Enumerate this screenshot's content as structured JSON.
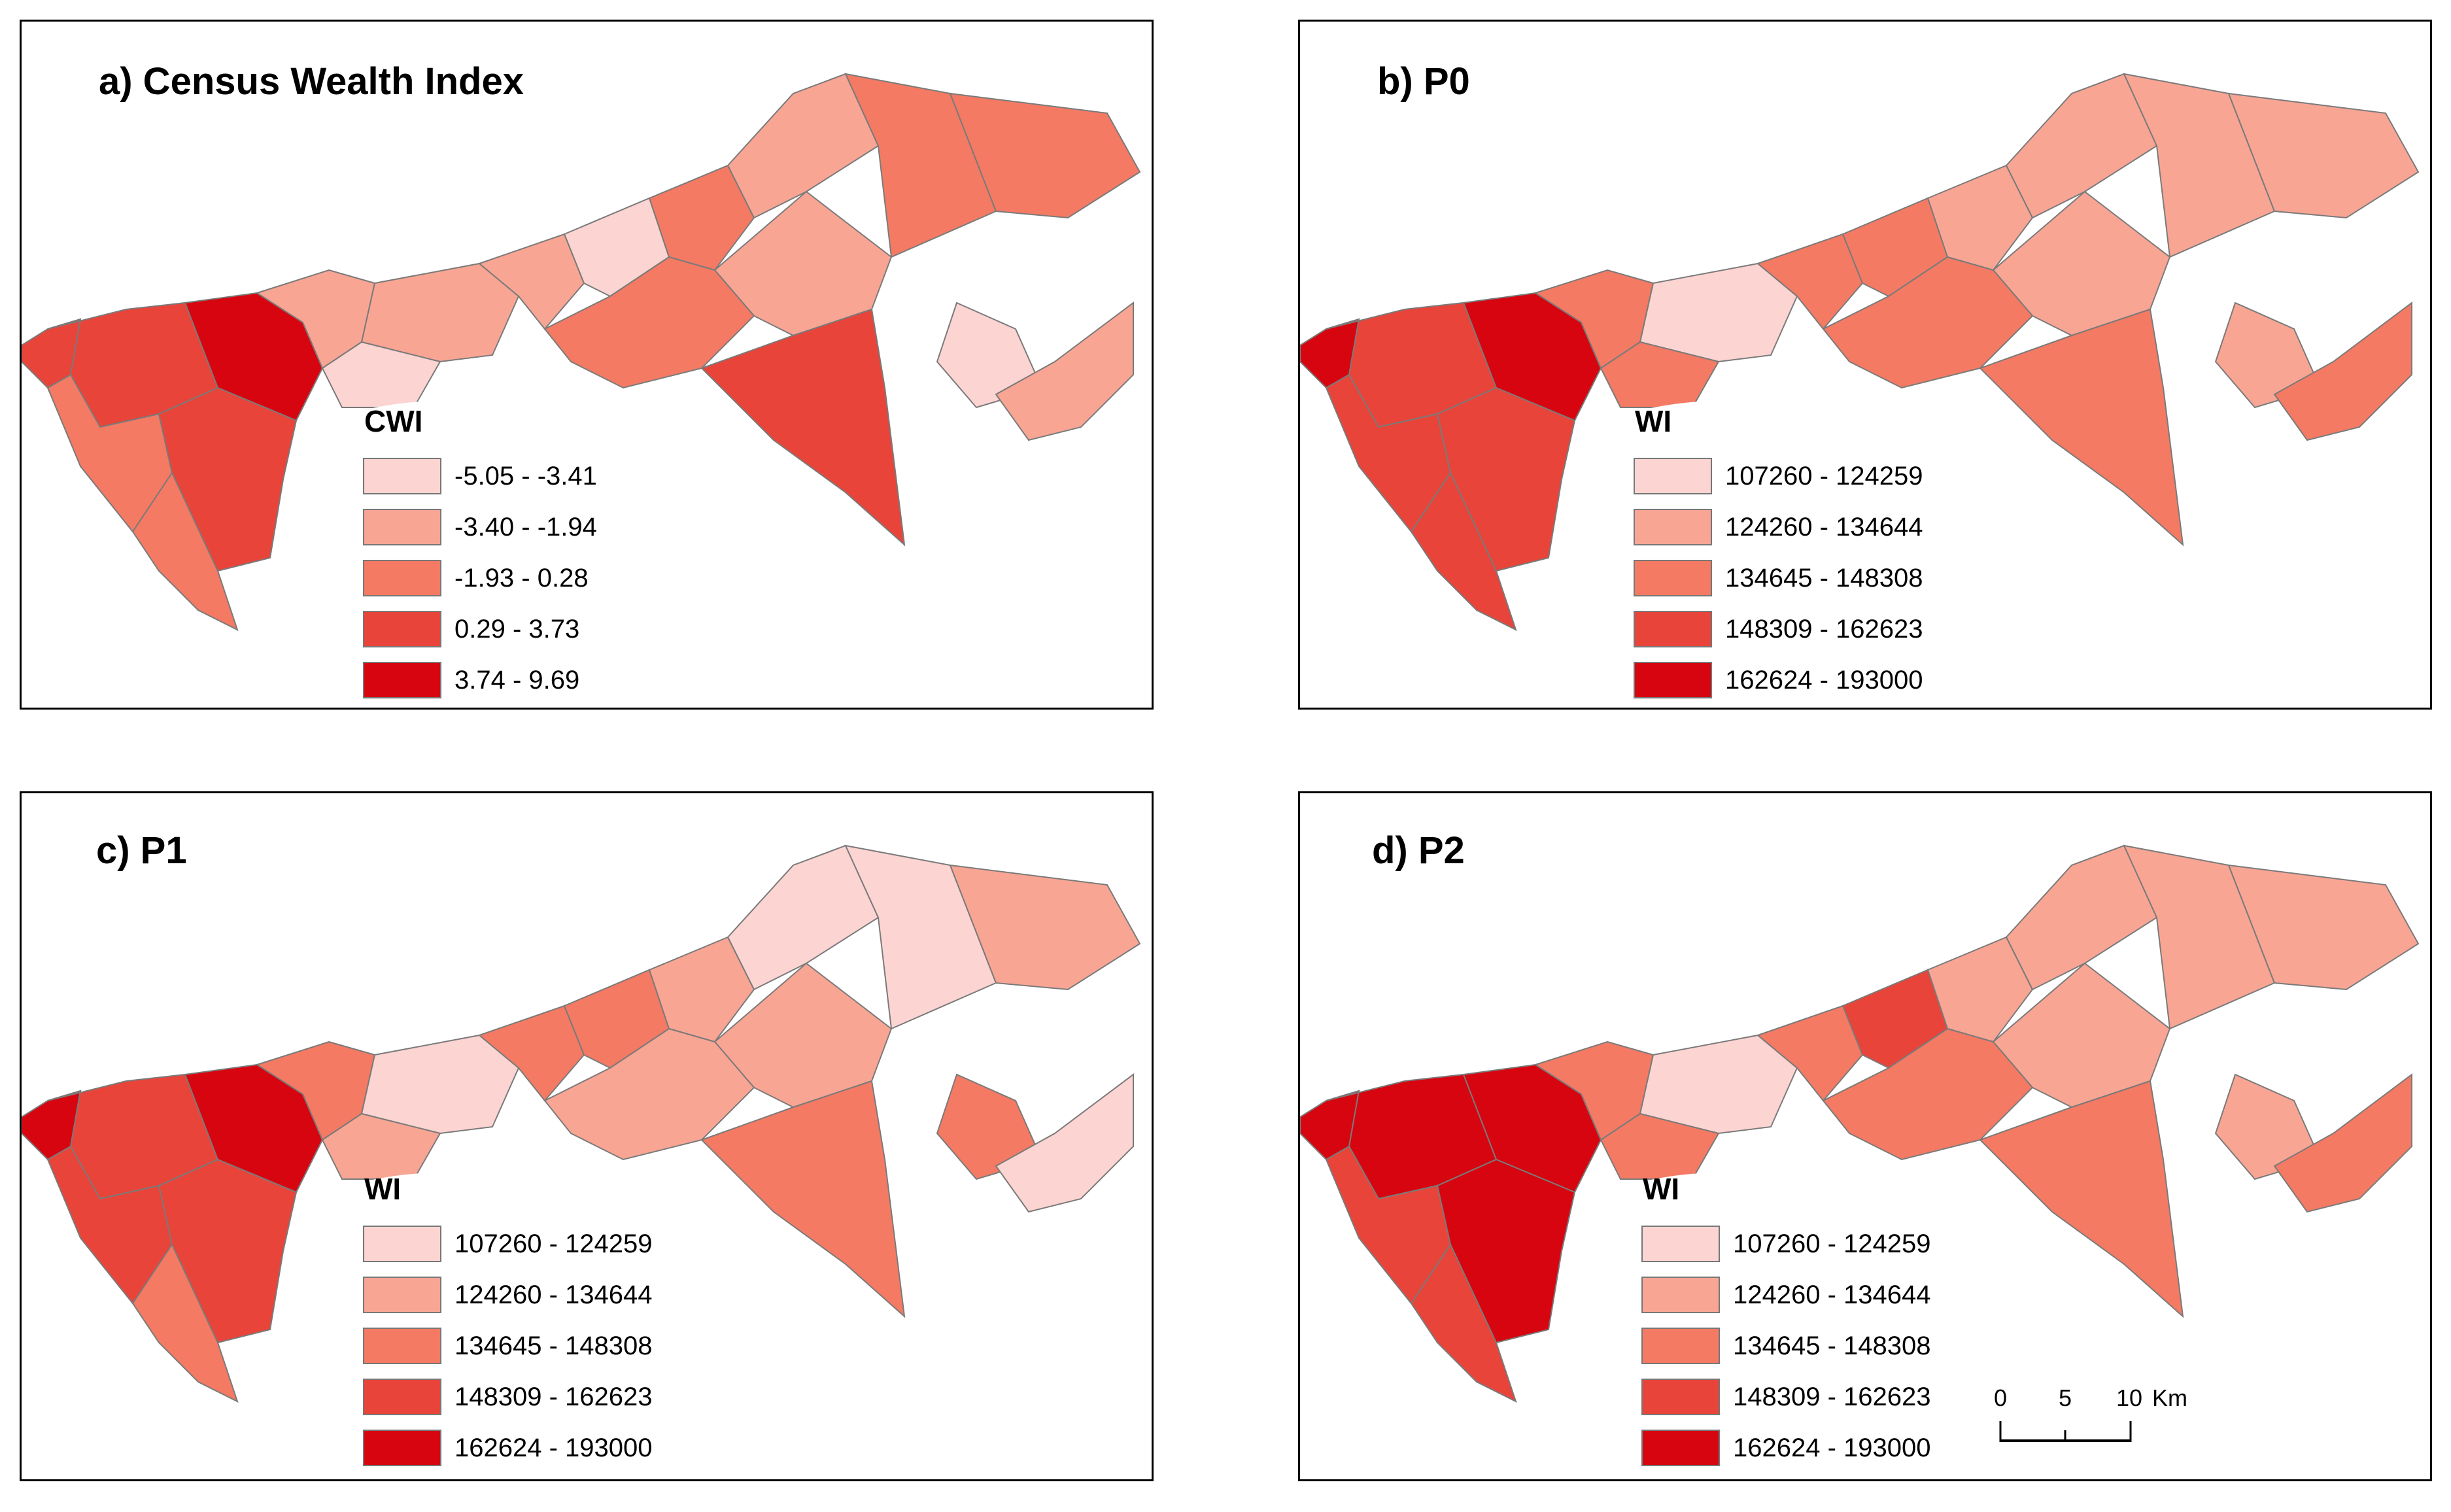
{
  "colors": {
    "class1": "#fcd4d2",
    "class2": "#f9a594",
    "class3": "#f47a63",
    "class4": "#e8443a",
    "class5": "#d7050f",
    "outline": "#7a7a7a"
  },
  "panels": [
    {
      "title": "a) Census Wealth Index",
      "legend_title": "CWI",
      "classes": [
        "-5.05 - -3.41",
        "-3.40 - -1.94",
        "-1.93 - 0.28",
        "0.29 - 3.73",
        "3.74 - 9.69"
      ],
      "region_classes": [
        4,
        4,
        3,
        5,
        4,
        3,
        2,
        2,
        1,
        2,
        1,
        3,
        2,
        3,
        3,
        1,
        2,
        3,
        4,
        2
      ]
    },
    {
      "title": "b) P0",
      "legend_title": "WI",
      "classes": [
        "107260 - 124259",
        "124260 - 134644",
        "134645 - 148308",
        "148309 - 162623",
        "162624 - 193000"
      ],
      "region_classes": [
        5,
        4,
        4,
        5,
        4,
        4,
        3,
        1,
        3,
        3,
        3,
        2,
        2,
        2,
        2,
        2,
        2,
        3,
        3,
        3
      ]
    },
    {
      "title": "c) P1",
      "legend_title": "WI",
      "classes": [
        "107260 - 124259",
        "124260 - 134644",
        "134645 - 148308",
        "148309 - 162623",
        "162624 - 193000"
      ],
      "region_classes": [
        5,
        4,
        4,
        5,
        4,
        3,
        3,
        1,
        2,
        3,
        3,
        2,
        1,
        1,
        2,
        3,
        2,
        2,
        3,
        1
      ]
    },
    {
      "title": "d) P2",
      "legend_title": "WI",
      "classes": [
        "107260 - 124259",
        "124260 - 134644",
        "134645 - 148308",
        "148309 - 162623",
        "162624 - 193000"
      ],
      "region_classes": [
        5,
        5,
        4,
        5,
        5,
        4,
        3,
        1,
        3,
        3,
        4,
        2,
        2,
        2,
        2,
        2,
        2,
        3,
        3,
        3
      ]
    }
  ],
  "scale_bar": {
    "ticks": [
      "0",
      "5",
      "10"
    ],
    "unit": "Km"
  }
}
